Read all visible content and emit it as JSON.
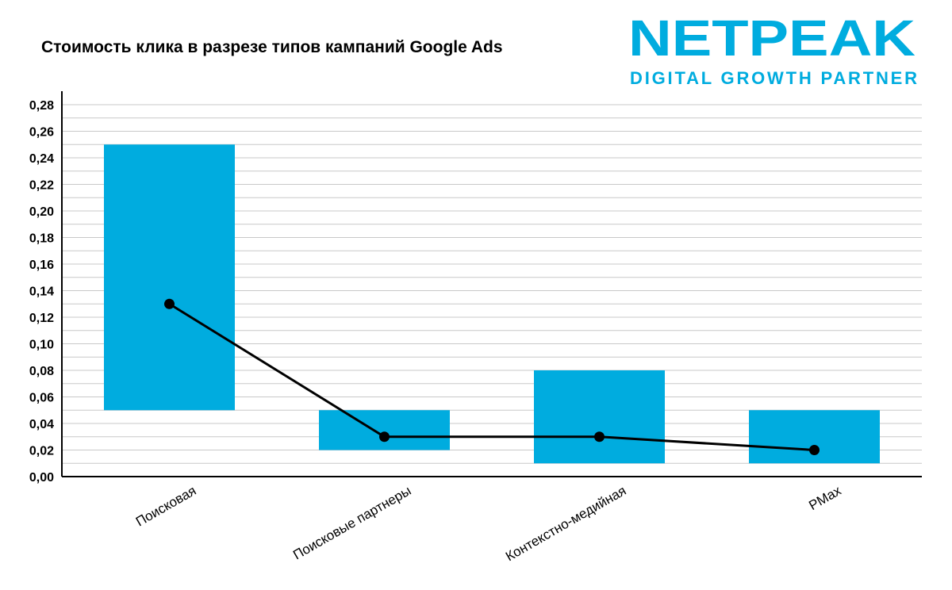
{
  "chart_data": {
    "type": "bar",
    "title": "Стоимость клика в разрезе типов кампаний Google Ads",
    "xlabel": "",
    "ylabel": "",
    "categories": [
      "Поисковая",
      "Поисковые партнеры",
      "Контекстно-медийная",
      "PMax"
    ],
    "series": [
      {
        "kind": "range-bar",
        "low": [
          0.05,
          0.02,
          0.01,
          0.01
        ],
        "high": [
          0.25,
          0.05,
          0.08,
          0.05
        ]
      },
      {
        "kind": "line",
        "values": [
          0.13,
          0.03,
          0.03,
          0.02
        ]
      }
    ],
    "ylim": [
      0,
      0.28
    ],
    "ytick_step": 0.02,
    "ytick_labels": [
      "0,00",
      "0,02",
      "0,04",
      "0,06",
      "0,08",
      "0,10",
      "0,12",
      "0,14",
      "0,16",
      "0,18",
      "0,20",
      "0,22",
      "0,24",
      "0,26",
      "0,28"
    ],
    "grid": true,
    "colors": {
      "bar": "#00acdf",
      "line": "#000000",
      "grid": "#c8c8c8"
    }
  },
  "logo": {
    "name": "NETPEAK",
    "tagline": "DIGITAL GROWTH PARTNER",
    "color": "#00acdf"
  }
}
